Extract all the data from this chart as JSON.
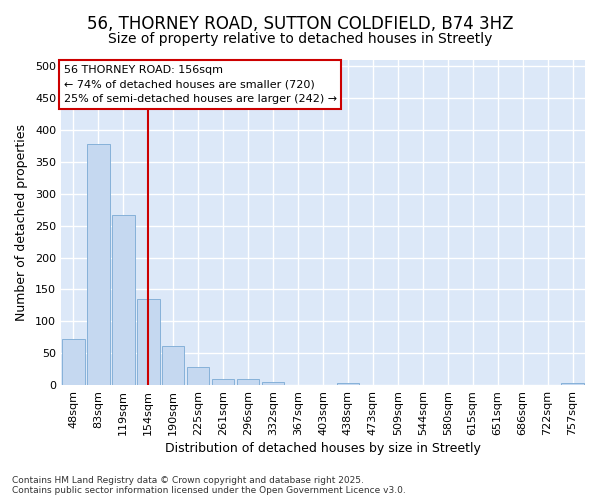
{
  "title1": "56, THORNEY ROAD, SUTTON COLDFIELD, B74 3HZ",
  "title2": "Size of property relative to detached houses in Streetly",
  "xlabel": "Distribution of detached houses by size in Streetly",
  "ylabel": "Number of detached properties",
  "categories": [
    "48sqm",
    "83sqm",
    "119sqm",
    "154sqm",
    "190sqm",
    "225sqm",
    "261sqm",
    "296sqm",
    "332sqm",
    "367sqm",
    "403sqm",
    "438sqm",
    "473sqm",
    "509sqm",
    "544sqm",
    "580sqm",
    "615sqm",
    "651sqm",
    "686sqm",
    "722sqm",
    "757sqm"
  ],
  "values": [
    73,
    378,
    267,
    135,
    61,
    28,
    10,
    10,
    5,
    0,
    0,
    4,
    0,
    0,
    0,
    0,
    0,
    0,
    0,
    0,
    3
  ],
  "bar_color": "#c5d8f0",
  "bar_edge_color": "#7aaad4",
  "vline_x": 3,
  "vline_color": "#cc0000",
  "annotation_text": "56 THORNEY ROAD: 156sqm\n← 74% of detached houses are smaller (720)\n25% of semi-detached houses are larger (242) →",
  "annotation_box_color": "#ffffff",
  "annotation_box_edge": "#cc0000",
  "ylim": [
    0,
    510
  ],
  "yticks": [
    0,
    50,
    100,
    150,
    200,
    250,
    300,
    350,
    400,
    450,
    500
  ],
  "plot_bg_color": "#dce8f8",
  "fig_bg_color": "#ffffff",
  "grid_color": "#ffffff",
  "footer": "Contains HM Land Registry data © Crown copyright and database right 2025.\nContains public sector information licensed under the Open Government Licence v3.0.",
  "title_fontsize": 12,
  "subtitle_fontsize": 10,
  "tick_fontsize": 8,
  "label_fontsize": 9,
  "annotation_fontsize": 8
}
